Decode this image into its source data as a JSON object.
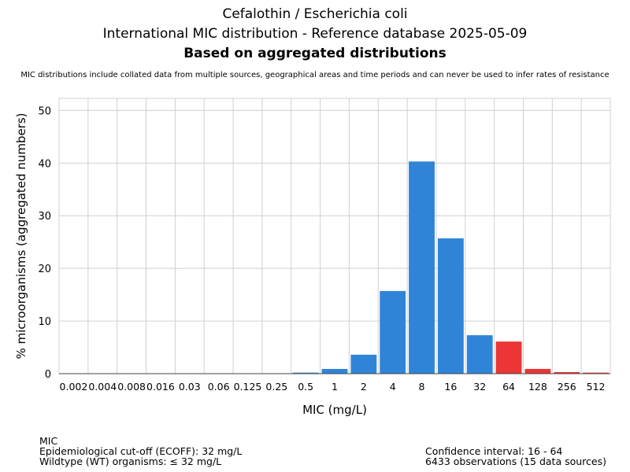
{
  "chart_data": {
    "type": "bar",
    "title": "Cefalothin / Escherichia coli",
    "subtitle": "International MIC distribution - Reference database 2025-05-09",
    "subtitle2": "Based on aggregated distributions",
    "note": "MIC distributions include collated data from multiple sources, geographical areas and time periods and can never be used to infer rates of resistance",
    "xlabel": "MIC (mg/L)",
    "ylabel": "% microorganisms (aggregated numbers)",
    "categories": [
      "0.002",
      "0.004",
      "0.008",
      "0.016",
      "0.03",
      "0.06",
      "0.125",
      "0.25",
      "0.5",
      "1",
      "2",
      "4",
      "8",
      "16",
      "32",
      "64",
      "128",
      "256",
      "512"
    ],
    "values": [
      0,
      0,
      0,
      0,
      0,
      0,
      0,
      0,
      0.2,
      0.9,
      3.6,
      15.7,
      40.3,
      25.7,
      7.3,
      6.1,
      0.9,
      0.3,
      0.2
    ],
    "colors": [
      "#2f84d8",
      "#2f84d8",
      "#2f84d8",
      "#2f84d8",
      "#2f84d8",
      "#2f84d8",
      "#2f84d8",
      "#2f84d8",
      "#2f84d8",
      "#2f84d8",
      "#2f84d8",
      "#2f84d8",
      "#2f84d8",
      "#2f84d8",
      "#2f84d8",
      "#ec3535",
      "#ec3535",
      "#ec3535",
      "#ec3535"
    ],
    "yticks": [
      0,
      10,
      20,
      30,
      40,
      50
    ],
    "ylim": [
      0,
      52.3
    ],
    "grid": true
  },
  "footer": {
    "left": [
      "MIC",
      "Epidemiological cut-off (ECOFF): 32 mg/L",
      "Wildtype (WT) organisms: ≤ 32 mg/L"
    ],
    "right": [
      "Confidence interval: 16 - 64",
      "6433 observations (15 data sources)"
    ]
  }
}
